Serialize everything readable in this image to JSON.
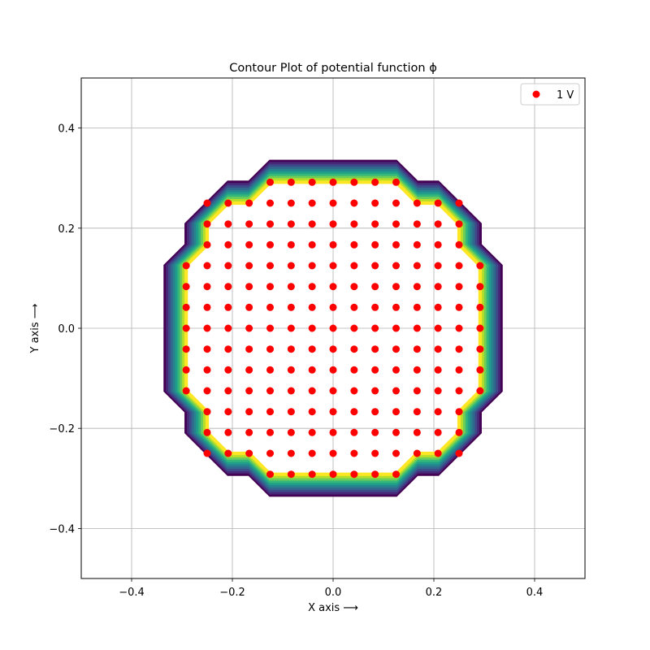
{
  "chart_data": {
    "type": "contour",
    "title": "Contour Plot of potential function ϕ",
    "xlabel": "X axis  ⟶",
    "ylabel": "Y axis  ⟶",
    "xlim": [
      -0.5,
      0.5
    ],
    "ylim": [
      -0.5,
      0.5
    ],
    "xticks": [
      -0.4,
      -0.2,
      0.0,
      0.2,
      0.4
    ],
    "yticks": [
      -0.4,
      -0.2,
      0.0,
      0.2,
      0.4
    ],
    "xtick_labels": [
      "−0.4",
      "−0.2",
      "0.0",
      "0.2",
      "0.4"
    ],
    "ytick_labels": [
      "−0.4",
      "−0.2",
      "0.0",
      "0.2",
      "0.4"
    ],
    "grid": true,
    "legend": {
      "position": "top-right",
      "entries": [
        "1 V"
      ]
    },
    "colormap": "viridis",
    "contour_colors": [
      "#440154",
      "#482878",
      "#3e4989",
      "#31688e",
      "#26828e",
      "#1f9e89",
      "#35b779",
      "#6ece58",
      "#b5de2b",
      "#fde725"
    ],
    "marker_color": "#ff0000",
    "electrode": {
      "name": "1 V",
      "grid_spacing": 0.04166,
      "x": [
        -0.2917,
        -0.25,
        -0.2083,
        -0.1667,
        -0.125,
        -0.0833,
        -0.0417,
        0.0,
        0.0417,
        0.0833,
        0.125,
        0.1667,
        0.2083,
        0.25,
        0.2917
      ],
      "y": [
        -0.2917,
        -0.25,
        -0.2083,
        -0.1667,
        -0.125,
        -0.0833,
        -0.0417,
        0.0,
        0.0417,
        0.0833,
        0.125,
        0.1667,
        0.2083,
        0.25,
        0.2917
      ],
      "row_extents": [
        {
          "y": 0.2917,
          "xmin": -0.125,
          "xmax": 0.125
        },
        {
          "y": 0.25,
          "xmin": -0.25,
          "xmax": 0.25
        },
        {
          "y": 0.2083,
          "xmin": -0.25,
          "xmax": 0.25
        },
        {
          "y": 0.1667,
          "xmin": -0.25,
          "xmax": 0.25
        },
        {
          "y": 0.125,
          "xmin": -0.2917,
          "xmax": 0.2917
        },
        {
          "y": 0.0833,
          "xmin": -0.2917,
          "xmax": 0.2917
        },
        {
          "y": 0.0417,
          "xmin": -0.2917,
          "xmax": 0.2917
        },
        {
          "y": 0.0,
          "xmin": -0.2917,
          "xmax": 0.2917
        },
        {
          "y": -0.0417,
          "xmin": -0.2917,
          "xmax": 0.2917
        },
        {
          "y": -0.0833,
          "xmin": -0.2917,
          "xmax": 0.2917
        },
        {
          "y": -0.125,
          "xmin": -0.2917,
          "xmax": 0.2917
        },
        {
          "y": -0.1667,
          "xmin": -0.25,
          "xmax": 0.25
        },
        {
          "y": -0.2083,
          "xmin": -0.25,
          "xmax": 0.25
        },
        {
          "y": -0.25,
          "xmin": -0.25,
          "xmax": 0.25
        },
        {
          "y": -0.2917,
          "xmin": -0.125,
          "xmax": 0.125
        }
      ]
    },
    "contour_band": {
      "inner_boundary": [
        [
          -0.125,
          0.2917
        ],
        [
          0.125,
          0.2917
        ],
        [
          0.1667,
          0.25
        ],
        [
          0.2083,
          0.25
        ],
        [
          0.25,
          0.2083
        ],
        [
          0.25,
          0.1667
        ],
        [
          0.2917,
          0.125
        ],
        [
          0.2917,
          -0.125
        ],
        [
          0.25,
          -0.1667
        ],
        [
          0.25,
          -0.2083
        ],
        [
          0.2083,
          -0.25
        ],
        [
          0.1667,
          -0.25
        ],
        [
          0.125,
          -0.2917
        ],
        [
          -0.125,
          -0.2917
        ],
        [
          -0.1667,
          -0.25
        ],
        [
          -0.2083,
          -0.25
        ],
        [
          -0.25,
          -0.2083
        ],
        [
          -0.25,
          -0.1667
        ],
        [
          -0.2917,
          -0.125
        ],
        [
          -0.2917,
          0.125
        ],
        [
          -0.25,
          0.1667
        ],
        [
          -0.25,
          0.2083
        ],
        [
          -0.2083,
          0.25
        ],
        [
          -0.1667,
          0.25
        ]
      ],
      "outer_boundary": [
        [
          -0.125,
          0.3333
        ],
        [
          0.125,
          0.3333
        ],
        [
          0.1667,
          0.2917
        ],
        [
          0.2083,
          0.2917
        ],
        [
          0.2917,
          0.2083
        ],
        [
          0.2917,
          0.1667
        ],
        [
          0.3333,
          0.125
        ],
        [
          0.3333,
          -0.125
        ],
        [
          0.2917,
          -0.1667
        ],
        [
          0.2917,
          -0.2083
        ],
        [
          0.2083,
          -0.2917
        ],
        [
          0.1667,
          -0.2917
        ],
        [
          0.125,
          -0.3333
        ],
        [
          -0.125,
          -0.3333
        ],
        [
          -0.1667,
          -0.2917
        ],
        [
          -0.2083,
          -0.2917
        ],
        [
          -0.2917,
          -0.2083
        ],
        [
          -0.2917,
          -0.1667
        ],
        [
          -0.3333,
          -0.125
        ],
        [
          -0.3333,
          0.125
        ],
        [
          -0.2917,
          0.1667
        ],
        [
          -0.2917,
          0.2083
        ],
        [
          -0.2083,
          0.2917
        ],
        [
          -0.1667,
          0.2917
        ]
      ]
    }
  }
}
